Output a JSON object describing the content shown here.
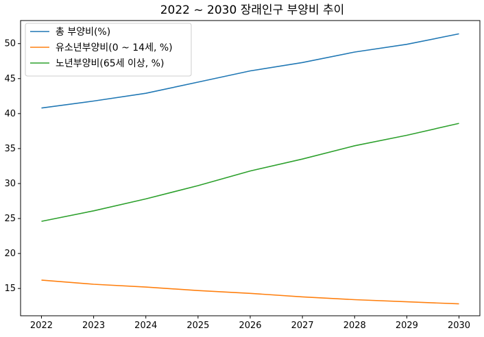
{
  "chart_data": {
    "type": "line",
    "title": "2022 ~ 2030 장래인구 부양비 추이",
    "xlabel": "",
    "ylabel": "",
    "x": [
      "2022",
      "2023",
      "2024",
      "2025",
      "2026",
      "2027",
      "2028",
      "2029",
      "2030"
    ],
    "xlim": [
      2021.6,
      2030.4
    ],
    "ylim": [
      11.1,
      53.3
    ],
    "y_ticks": [
      15,
      20,
      25,
      30,
      35,
      40,
      45,
      50
    ],
    "grid": false,
    "legend_position": "top-left",
    "series": [
      {
        "name": "총 부양비(%)",
        "color": "#1f77b4",
        "values": [
          40.8,
          41.8,
          42.9,
          44.5,
          46.1,
          47.3,
          48.8,
          49.9,
          51.4
        ]
      },
      {
        "name": "유소년부양비(0 ~ 14세, %)",
        "color": "#ff7f0e",
        "values": [
          16.2,
          15.6,
          15.2,
          14.7,
          14.3,
          13.8,
          13.4,
          13.1,
          12.8
        ]
      },
      {
        "name": "노년부양비(65세 이상, %)",
        "color": "#2ca02c",
        "values": [
          24.6,
          26.1,
          27.8,
          29.7,
          31.8,
          33.5,
          35.4,
          36.9,
          38.6
        ]
      }
    ]
  }
}
